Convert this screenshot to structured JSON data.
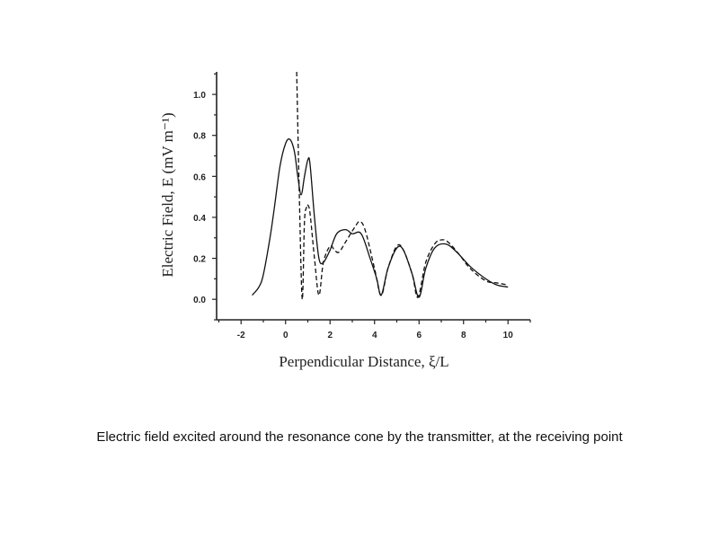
{
  "caption": "Electric field excited around the resonance cone by the transmitter, at the receiving point",
  "chart_data": {
    "type": "line",
    "title": "",
    "xlabel": "Perpendicular Distance, ξ/L",
    "ylabel": "Electric Field, E (mV m⁻¹)",
    "xlim": [
      -3.1,
      11.0
    ],
    "ylim": [
      -0.1,
      1.11
    ],
    "xticks": [
      -2,
      0,
      2,
      4,
      6,
      8,
      10
    ],
    "xtick_labels": [
      "-2",
      "0",
      "2",
      "4",
      "6",
      "8",
      "10"
    ],
    "yticks": [
      0.0,
      0.2,
      0.4,
      0.6,
      0.8,
      1.0
    ],
    "ytick_labels": [
      "0.0",
      "0.2",
      "0.4",
      "0.6",
      "0.8",
      "1.0"
    ],
    "grid": false,
    "series": [
      {
        "name": "solid",
        "style": "solid",
        "x": [
          -1.5,
          -1.2,
          -1,
          -0.7,
          -0.5,
          -0.25,
          0,
          0.2,
          0.4,
          0.55,
          0.7,
          0.85,
          1,
          1.1,
          1.3,
          1.5,
          1.7,
          2,
          2.3,
          2.7,
          3,
          3.4,
          3.8,
          4.1,
          4.3,
          4.6,
          5,
          5.3,
          5.7,
          6,
          6.3,
          6.7,
          7.2,
          7.7,
          8.3,
          9,
          9.5,
          10
        ],
        "y": [
          0.02,
          0.06,
          0.12,
          0.3,
          0.45,
          0.65,
          0.76,
          0.78,
          0.72,
          0.6,
          0.51,
          0.6,
          0.68,
          0.66,
          0.4,
          0.2,
          0.18,
          0.24,
          0.32,
          0.34,
          0.32,
          0.32,
          0.2,
          0.1,
          0.02,
          0.15,
          0.25,
          0.24,
          0.12,
          0.01,
          0.15,
          0.25,
          0.27,
          0.23,
          0.16,
          0.1,
          0.07,
          0.06
        ]
      },
      {
        "name": "dashed",
        "style": "dashed",
        "x": [
          0.5,
          0.62,
          0.75,
          0.85,
          0.95,
          1,
          1.1,
          1.3,
          1.5,
          1.7,
          2,
          2.2,
          2.4,
          2.7,
          3.1,
          3.35,
          3.6,
          4,
          4.3,
          4.6,
          5,
          5.3,
          5.7,
          5.95,
          6.3,
          6.7,
          7,
          7.3,
          7.8,
          8.3,
          9,
          9.5,
          10
        ],
        "y": [
          1.11,
          0.5,
          0.0,
          0.38,
          0.45,
          0.46,
          0.42,
          0.2,
          0.02,
          0.18,
          0.26,
          0.24,
          0.23,
          0.28,
          0.35,
          0.38,
          0.33,
          0.15,
          0.02,
          0.15,
          0.26,
          0.24,
          0.12,
          0.01,
          0.18,
          0.27,
          0.29,
          0.28,
          0.22,
          0.15,
          0.09,
          0.08,
          0.07
        ]
      }
    ]
  }
}
